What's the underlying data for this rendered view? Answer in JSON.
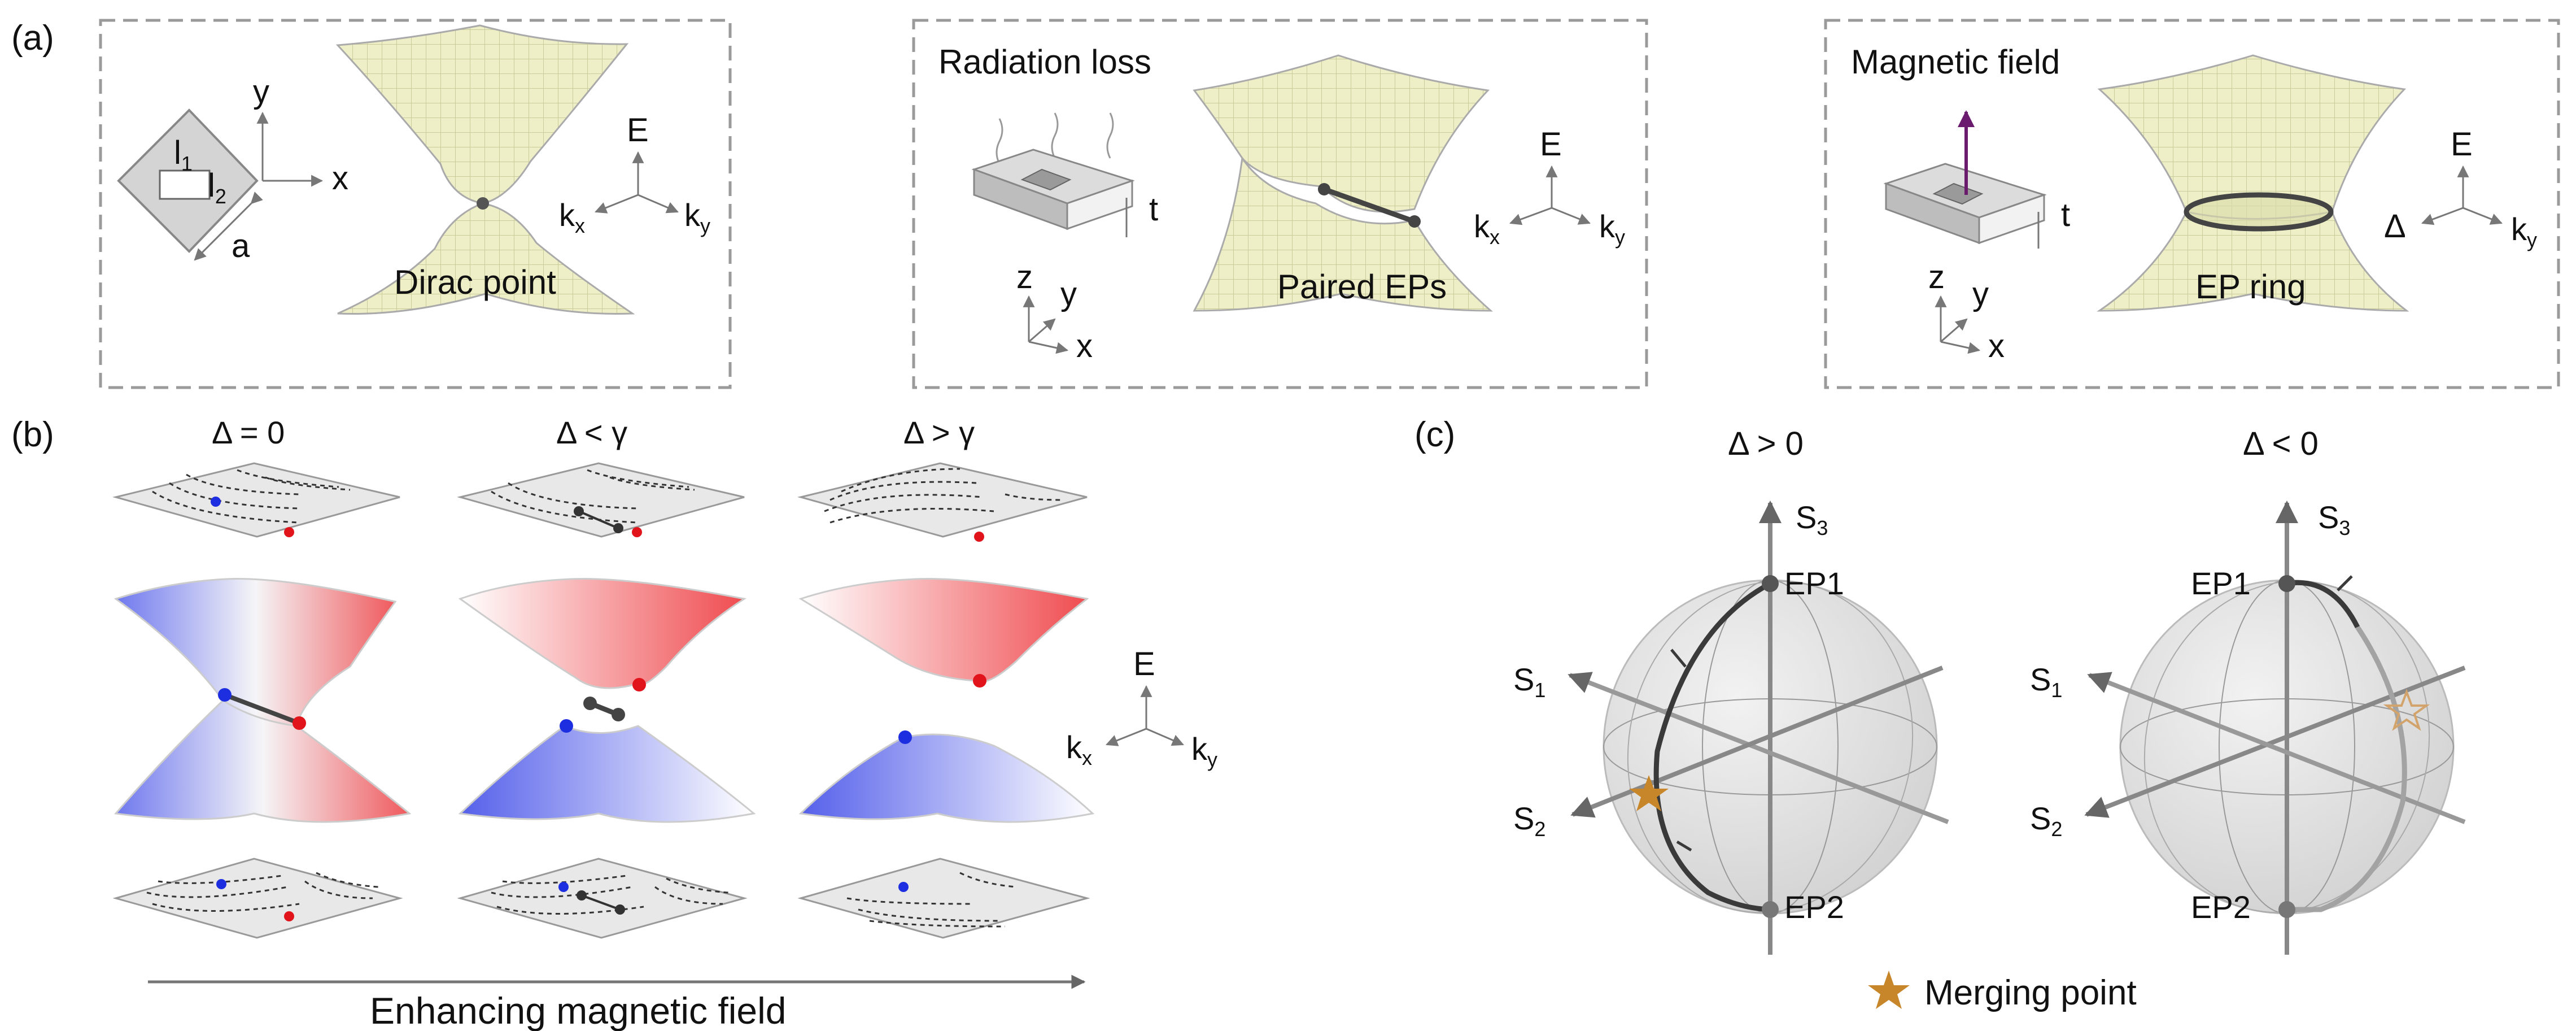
{
  "panel_a": {
    "label": "(a)",
    "box1": {
      "l1_base": "l",
      "l1_sub": "1",
      "l2_base": "l",
      "l2_sub": "2",
      "a": "a",
      "x": "x",
      "y": "y",
      "caption": "Dirac point"
    },
    "box2": {
      "title": "Radiation loss",
      "t": "t",
      "x": "x",
      "y": "y",
      "z": "z",
      "caption": "Paired EPs"
    },
    "box3": {
      "title": "Magnetic field",
      "t": "t",
      "x": "x",
      "y": "y",
      "z": "z",
      "caption": "EP ring",
      "delta": "Δ"
    },
    "axes": {
      "E": "E",
      "k": "k",
      "x_sub": "x",
      "y_sub": "y"
    }
  },
  "panel_b": {
    "label": "(b)",
    "columns": [
      "Δ = 0",
      "Δ < γ",
      "Δ > γ"
    ],
    "axes": {
      "E": "E",
      "k": "k",
      "x_sub": "x",
      "y_sub": "y"
    },
    "arrow_label": "Enhancing magnetic field"
  },
  "panel_c": {
    "label": "(c)",
    "spheres": [
      {
        "title": "Δ > 0",
        "ep1": "EP1",
        "ep2": "EP2"
      },
      {
        "title": "Δ < 0",
        "ep1": "EP1",
        "ep2": "EP2"
      }
    ],
    "axes": {
      "S": "S",
      "s1": "1",
      "s2": "2",
      "s3": "3"
    },
    "legend": "Merging point"
  },
  "colors": {
    "surface": "#eeefc6",
    "mesh": "#c9cc9a",
    "blue": "#1d2de0",
    "red": "#e0141a",
    "star": "#c8862a",
    "sphere": "#e2e2e2",
    "dashed_box": "#9a9a9a"
  }
}
